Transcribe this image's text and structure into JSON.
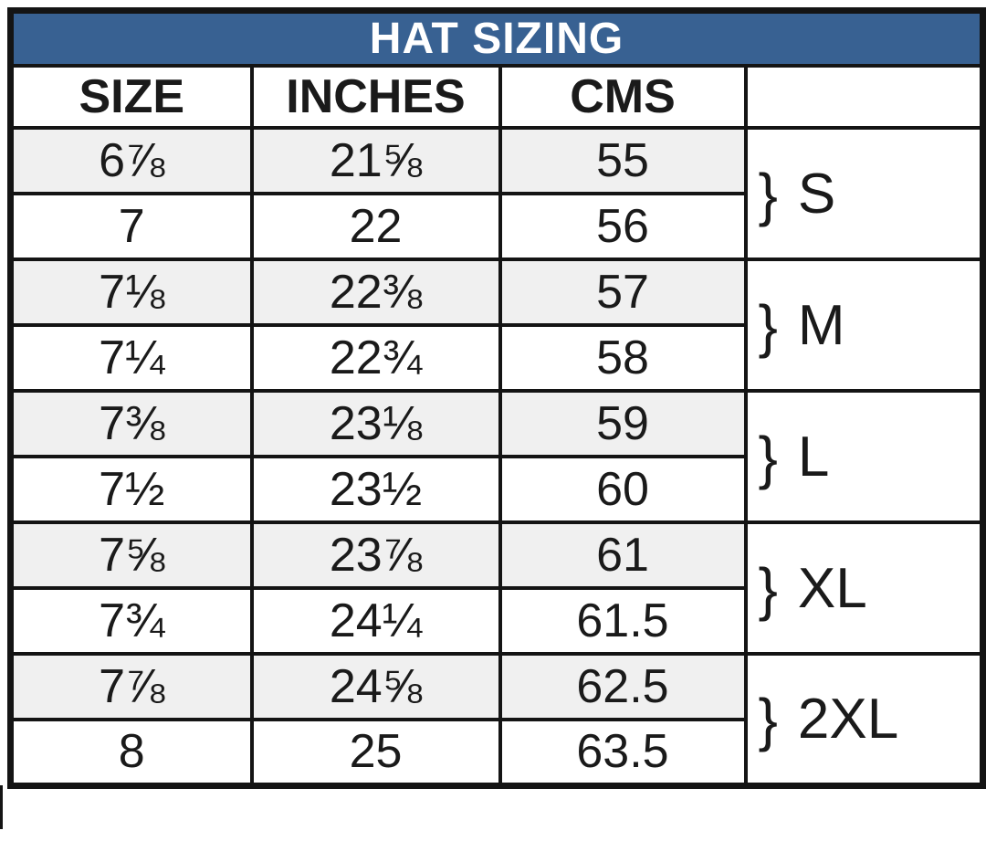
{
  "title": "HAT SIZING",
  "chart_data": {
    "type": "table",
    "title": "HAT SIZING",
    "columns": [
      "SIZE",
      "INCHES",
      "CMS",
      ""
    ],
    "rows": [
      [
        "6⅞",
        "21⅝",
        "55"
      ],
      [
        "7",
        "22",
        "56"
      ],
      [
        "7⅛",
        "22⅜",
        "57"
      ],
      [
        "7¼",
        "22¾",
        "58"
      ],
      [
        "7⅜",
        "23⅛",
        "59"
      ],
      [
        "7½",
        "23½",
        "60"
      ],
      [
        "7⅝",
        "23⅞",
        "61"
      ],
      [
        "7¾",
        "24¼",
        "61.5"
      ],
      [
        "7⅞",
        "24⅝",
        "62.5"
      ],
      [
        "8",
        "25",
        "63.5"
      ]
    ],
    "row_groups": [
      {
        "brace": "}",
        "label": "S",
        "rows": [
          0,
          1
        ]
      },
      {
        "brace": "}",
        "label": "M",
        "rows": [
          2,
          3
        ]
      },
      {
        "brace": "}",
        "label": "L",
        "rows": [
          4,
          5
        ]
      },
      {
        "brace": "}",
        "label": "XL",
        "rows": [
          6,
          7
        ]
      },
      {
        "brace": "}",
        "label": "2XL",
        "rows": [
          8,
          9
        ]
      }
    ],
    "layout_hints": {
      "shaded_row_indexes": [
        0,
        2,
        4,
        6,
        8
      ],
      "group_column_position": "right"
    }
  },
  "colors": {
    "title_bg": "#386192",
    "title_text": "#ffffff",
    "shaded_row_bg": "#f0f0f0",
    "row_bg": "#ffffff",
    "border": "#141414",
    "text": "#1a1a1a"
  }
}
